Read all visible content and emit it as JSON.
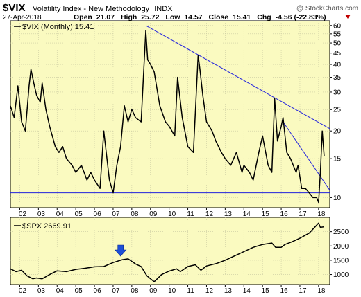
{
  "header": {
    "ticker": "$VIX",
    "name": "Volatility Index - New Methodology",
    "exchange": "INDX",
    "date": "27-Apr-2018",
    "open_label": "Open",
    "open": "21.07",
    "high_label": "High",
    "high": "25.72",
    "low_label": "Low",
    "low": "14.57",
    "close_label": "Close",
    "close": "15.41",
    "chg_label": "Chg",
    "chg": "-4.56 (-22.83%)",
    "copyright": "@ StockCharts.com"
  },
  "colors": {
    "panel_bg": "#fafac0",
    "line": "#000000",
    "trendline": "#2222dd",
    "arrow": "#1d4fd8",
    "down_triangle": "#c00000"
  },
  "chart_data": [
    {
      "type": "line",
      "legend": "$VIX (Monthly) 15.41",
      "scale": "log",
      "ylim": [
        9,
        63
      ],
      "y_ticks": [
        10,
        15,
        20,
        25,
        30,
        35,
        40,
        45,
        50,
        55,
        60
      ],
      "x_ticks": [
        "02",
        "03",
        "04",
        "05",
        "06",
        "07",
        "08",
        "09",
        "10",
        "11",
        "12",
        "13",
        "14",
        "15",
        "16",
        "17",
        "18"
      ],
      "xlim": [
        2001.5,
        2018.6
      ],
      "series": [
        {
          "x": [
            2001.5,
            2001.7,
            2001.9,
            2002.1,
            2002.3,
            2002.5,
            2002.6,
            2002.75,
            2002.9,
            2003.1,
            2003.2,
            2003.4,
            2003.6,
            2003.9,
            2004.1,
            2004.3,
            2004.5,
            2004.8,
            2005.0,
            2005.3,
            2005.6,
            2005.8,
            2006.0,
            2006.3,
            2006.5,
            2006.8,
            2007.0,
            2007.2,
            2007.4,
            2007.6,
            2007.8,
            2008.0,
            2008.2,
            2008.5,
            2008.75,
            2008.85,
            2009.0,
            2009.2,
            2009.5,
            2009.8,
            2010.0,
            2010.3,
            2010.45,
            2010.7,
            2011.0,
            2011.3,
            2011.55,
            2011.65,
            2011.8,
            2012.0,
            2012.3,
            2012.5,
            2012.8,
            2013.0,
            2013.3,
            2013.6,
            2013.9,
            2014.0,
            2014.3,
            2014.5,
            2014.8,
            2015.0,
            2015.3,
            2015.5,
            2015.65,
            2015.8,
            2016.0,
            2016.1,
            2016.3,
            2016.5,
            2016.8,
            2016.9,
            2017.1,
            2017.3,
            2017.5,
            2017.7,
            2017.9,
            2018.0,
            2018.1,
            2018.2,
            2018.3
          ],
          "values": [
            26,
            23,
            32,
            22,
            20,
            32,
            38,
            33,
            29,
            27,
            33,
            25,
            21,
            17,
            16,
            17,
            15,
            14,
            13,
            14,
            12,
            13,
            12,
            11,
            20,
            12,
            10.5,
            14,
            17,
            26,
            22,
            25,
            23,
            22,
            57,
            42,
            40,
            37,
            26,
            22,
            21,
            19,
            35,
            23,
            17,
            16,
            44,
            38,
            29,
            22,
            20,
            18,
            16,
            15,
            14,
            16,
            13,
            14,
            13,
            12,
            16,
            19,
            14,
            13,
            28,
            18,
            21,
            23,
            16,
            15,
            13,
            14,
            11,
            11,
            10.5,
            10,
            10,
            9.5,
            13,
            20,
            15.41
          ]
        }
      ],
      "annotations": {
        "support_line": 10.5,
        "trendline_1": {
          "x": [
            2008.75,
            2018.6
          ],
          "y": [
            60,
            20.5
          ]
        },
        "trendline_2": {
          "x": [
            2016.1,
            2018.6
          ],
          "y": [
            22,
            10.8
          ]
        }
      }
    },
    {
      "type": "line",
      "legend": "$SPX 2669.91",
      "ylim": [
        650,
        3000
      ],
      "y_ticks": [
        1000,
        1500,
        2000,
        2500
      ],
      "x_ticks": [
        "02",
        "03",
        "04",
        "05",
        "06",
        "07",
        "08",
        "09",
        "10",
        "11",
        "12",
        "13",
        "14",
        "15",
        "16",
        "17",
        "18"
      ],
      "xlim": [
        2001.5,
        2018.6
      ],
      "series": [
        {
          "x": [
            2001.5,
            2001.8,
            2002.1,
            2002.4,
            2002.7,
            2002.9,
            2003.2,
            2003.6,
            2004.0,
            2004.5,
            2005.0,
            2005.5,
            2006.0,
            2006.5,
            2007.0,
            2007.5,
            2007.8,
            2008.2,
            2008.5,
            2008.8,
            2009.0,
            2009.2,
            2009.6,
            2010.0,
            2010.4,
            2010.6,
            2011.0,
            2011.4,
            2011.7,
            2012.0,
            2012.5,
            2013.0,
            2013.5,
            2014.0,
            2014.5,
            2015.0,
            2015.5,
            2015.7,
            2016.0,
            2016.2,
            2016.6,
            2017.0,
            2017.5,
            2018.0,
            2018.1,
            2018.3
          ],
          "values": [
            1200,
            1100,
            1150,
            950,
            850,
            880,
            850,
            1000,
            1130,
            1100,
            1180,
            1220,
            1270,
            1280,
            1420,
            1520,
            1550,
            1370,
            1280,
            960,
            850,
            750,
            1000,
            1120,
            1200,
            1100,
            1280,
            1340,
            1150,
            1300,
            1380,
            1500,
            1650,
            1800,
            1950,
            2050,
            2100,
            1950,
            1950,
            2050,
            2150,
            2270,
            2450,
            2800,
            2650,
            2669.91
          ]
        }
      ],
      "annotations": {
        "marker_arrow_x": 2007.4
      }
    }
  ]
}
